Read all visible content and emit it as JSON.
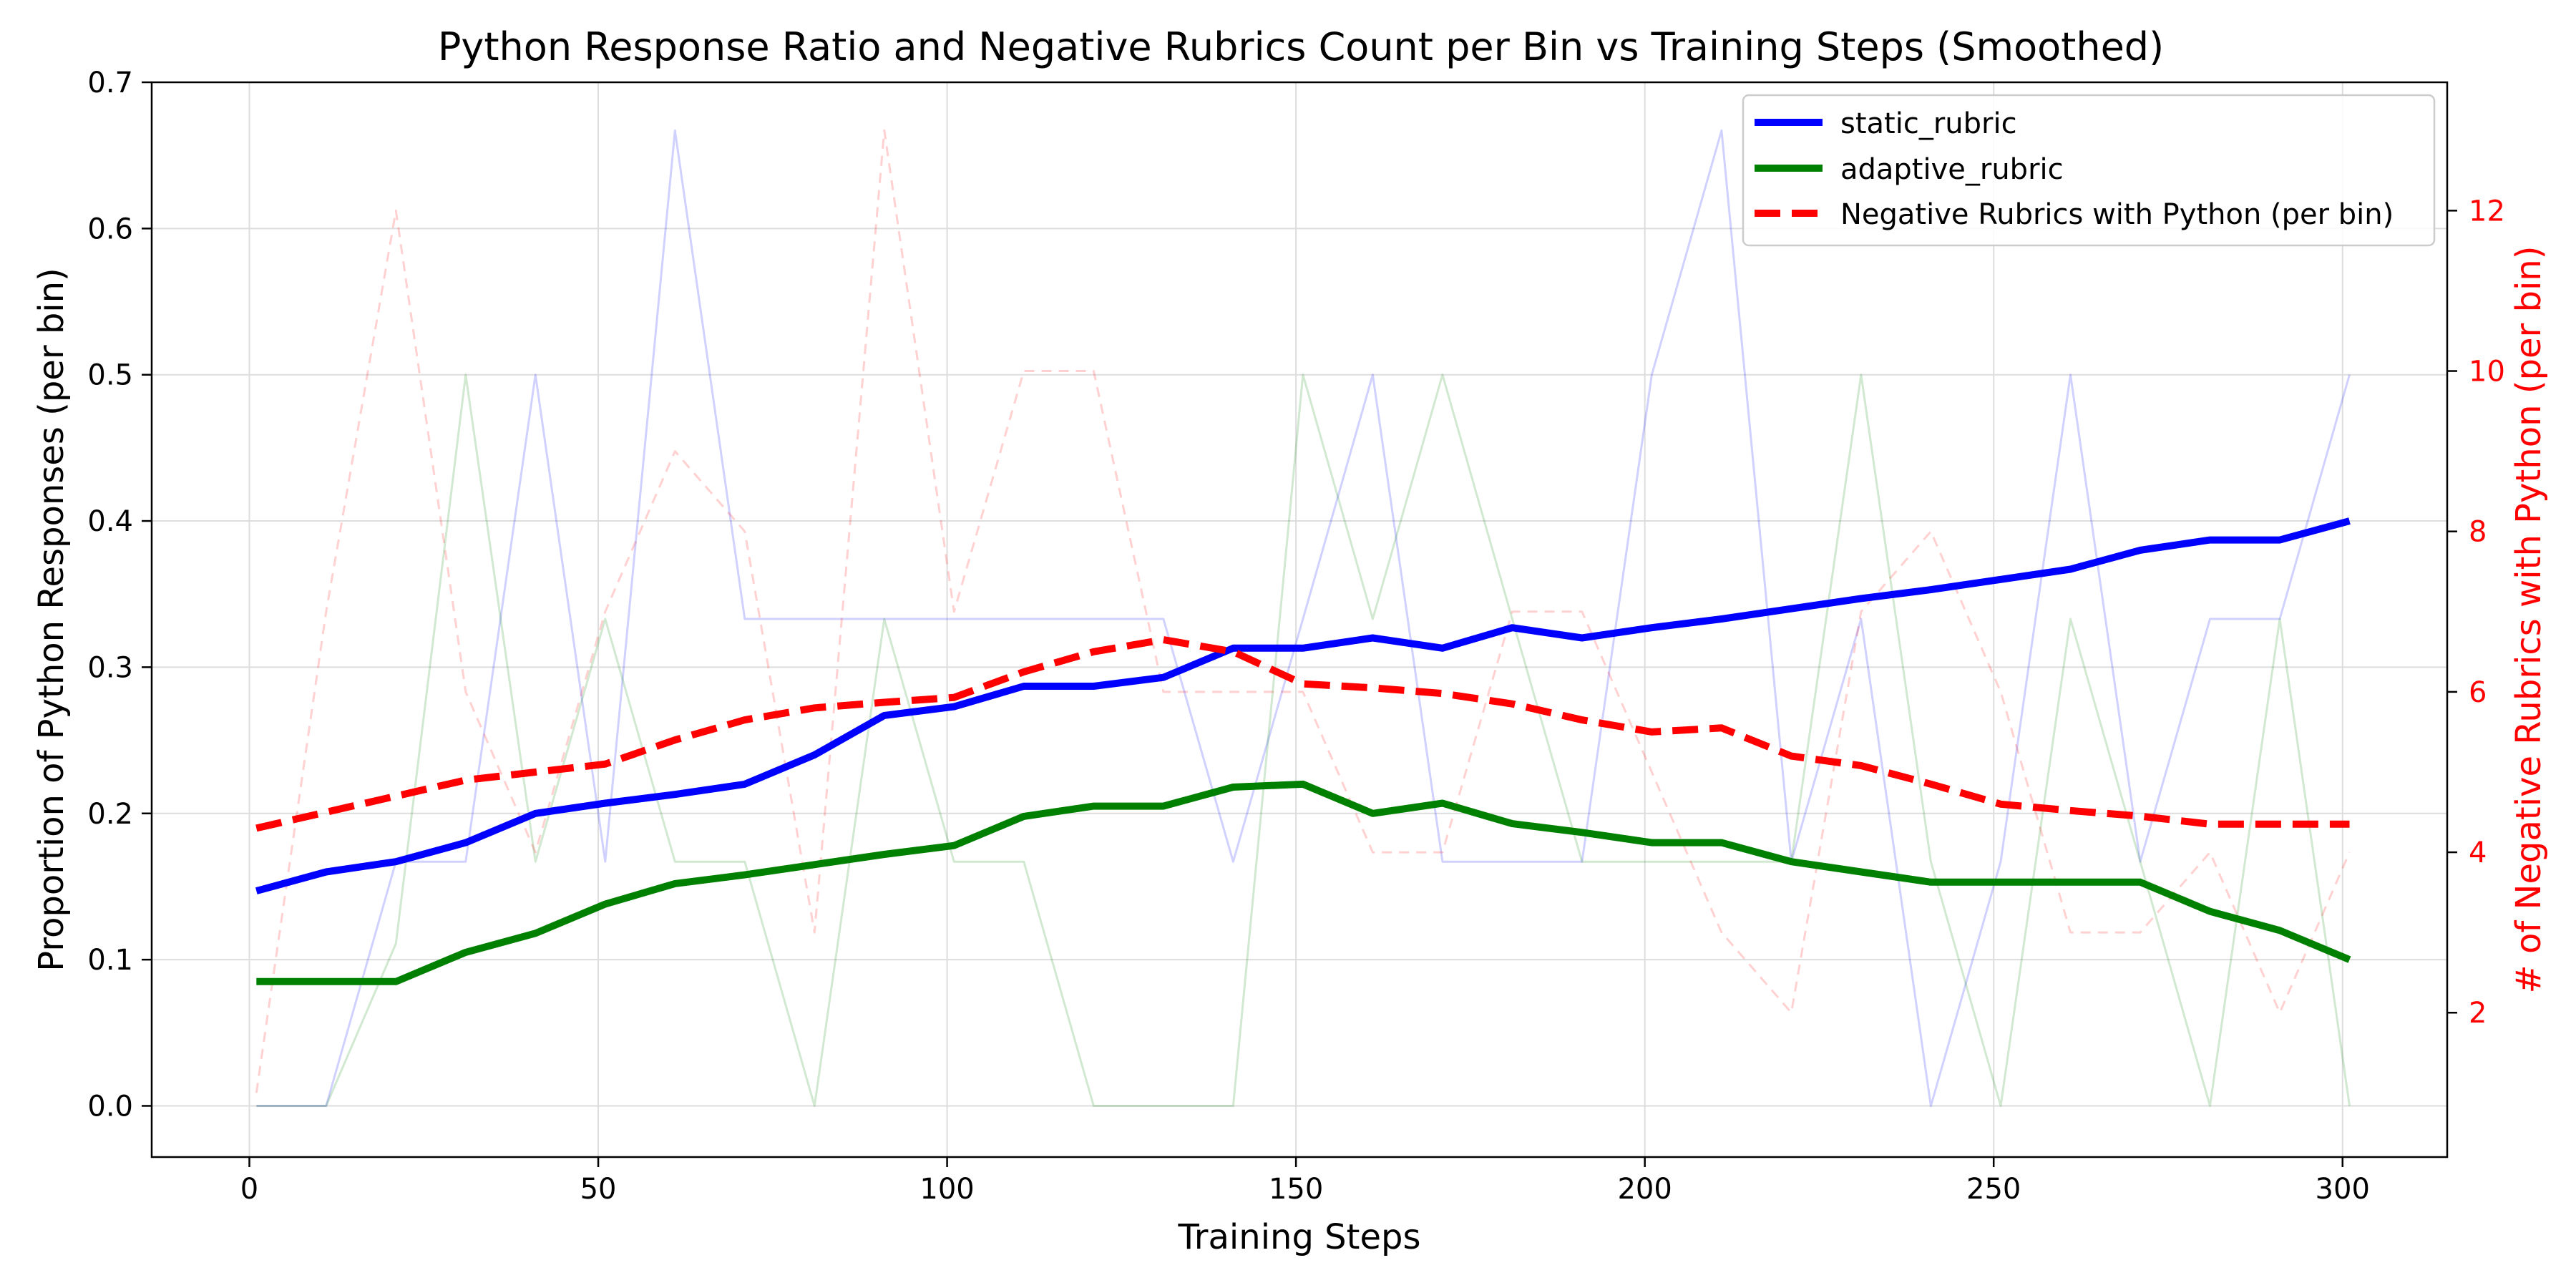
{
  "chart_data": {
    "type": "line",
    "title": "Python Response Ratio and Negative Rubrics Count per Bin vs Training Steps (Smoothed)",
    "xlabel": "Training Steps",
    "ylabel": "Proportion of Python Responses (per bin)",
    "y2label": "# of Negative Rubrics with Python (per bin)",
    "xlim": [
      -14,
      315
    ],
    "ylim": [
      -0.035,
      0.7
    ],
    "y2lim": [
      0.2,
      13.6
    ],
    "xticks": [
      0,
      50,
      100,
      150,
      200,
      250,
      300
    ],
    "yticks": [
      "0.0",
      "0.1",
      "0.2",
      "0.3",
      "0.4",
      "0.5",
      "0.6",
      "0.7"
    ],
    "y2ticks": [
      "2",
      "4",
      "6",
      "8",
      "10",
      "12"
    ],
    "grid": true,
    "legend_position": "top-right",
    "x": [
      1,
      11,
      21,
      31,
      41,
      51,
      61,
      71,
      81,
      91,
      101,
      111,
      121,
      131,
      141,
      151,
      161,
      171,
      181,
      191,
      201,
      211,
      221,
      231,
      241,
      251,
      261,
      271,
      281,
      291,
      301
    ],
    "series": [
      {
        "name": "static_rubric",
        "axis": "left",
        "color": "#0000ff",
        "style": "solid",
        "values": [
          0.147,
          0.16,
          0.167,
          0.18,
          0.2,
          0.207,
          0.213,
          0.22,
          0.24,
          0.267,
          0.273,
          0.287,
          0.287,
          0.293,
          0.313,
          0.313,
          0.32,
          0.313,
          0.327,
          0.32,
          0.327,
          0.333,
          0.34,
          0.347,
          0.353,
          0.36,
          0.367,
          0.38,
          0.387,
          0.387,
          0.4
        ]
      },
      {
        "name": "adaptive_rubric",
        "axis": "left",
        "color": "#008000",
        "style": "solid",
        "values": [
          0.085,
          0.085,
          0.085,
          0.105,
          0.118,
          0.138,
          0.152,
          0.158,
          0.165,
          0.172,
          0.178,
          0.198,
          0.205,
          0.205,
          0.218,
          0.22,
          0.2,
          0.207,
          0.193,
          0.187,
          0.18,
          0.18,
          0.167,
          0.16,
          0.153,
          0.153,
          0.153,
          0.153,
          0.133,
          0.12,
          0.1
        ]
      },
      {
        "name": "Negative Rubrics with Python (per bin)",
        "axis": "right",
        "color": "#ff0000",
        "style": "dashed",
        "values": [
          4.3,
          4.5,
          4.7,
          4.9,
          5.0,
          5.1,
          5.4,
          5.65,
          5.8,
          5.87,
          5.93,
          6.25,
          6.5,
          6.65,
          6.5,
          6.1,
          6.05,
          5.98,
          5.85,
          5.65,
          5.5,
          5.55,
          5.2,
          5.08,
          4.85,
          4.6,
          4.52,
          4.45,
          4.35,
          4.35,
          4.35
        ]
      }
    ],
    "raw_series": [
      {
        "color": "#0000ff",
        "style": "solid",
        "axis": "left",
        "values": [
          0.0,
          0.0,
          0.167,
          0.167,
          0.5,
          0.167,
          0.667,
          0.333,
          0.333,
          0.333,
          0.333,
          0.333,
          0.333,
          0.333,
          0.167,
          0.333,
          0.5,
          0.167,
          0.167,
          0.167,
          0.5,
          0.667,
          0.167,
          0.333,
          0.0,
          0.167,
          0.5,
          0.167,
          0.333,
          0.333,
          0.5
        ]
      },
      {
        "color": "#008000",
        "style": "solid",
        "axis": "left",
        "values": [
          0.0,
          0.0,
          0.111,
          0.5,
          0.167,
          0.333,
          0.167,
          0.167,
          0.0,
          0.333,
          0.167,
          0.167,
          0.0,
          0.0,
          0.0,
          0.5,
          0.333,
          0.5,
          0.333,
          0.167,
          0.167,
          0.167,
          0.167,
          0.5,
          0.167,
          0.0,
          0.333,
          0.167,
          0.0,
          0.333,
          0.0
        ]
      },
      {
        "color": "#ff0000",
        "style": "dashed",
        "axis": "right",
        "values": [
          1,
          7,
          12,
          6,
          4,
          7,
          9,
          8,
          3,
          13,
          7,
          10,
          10,
          6,
          6,
          6,
          4,
          4,
          7,
          7,
          5,
          3,
          2,
          7,
          8,
          6,
          3,
          3,
          4,
          2,
          4
        ]
      }
    ]
  }
}
